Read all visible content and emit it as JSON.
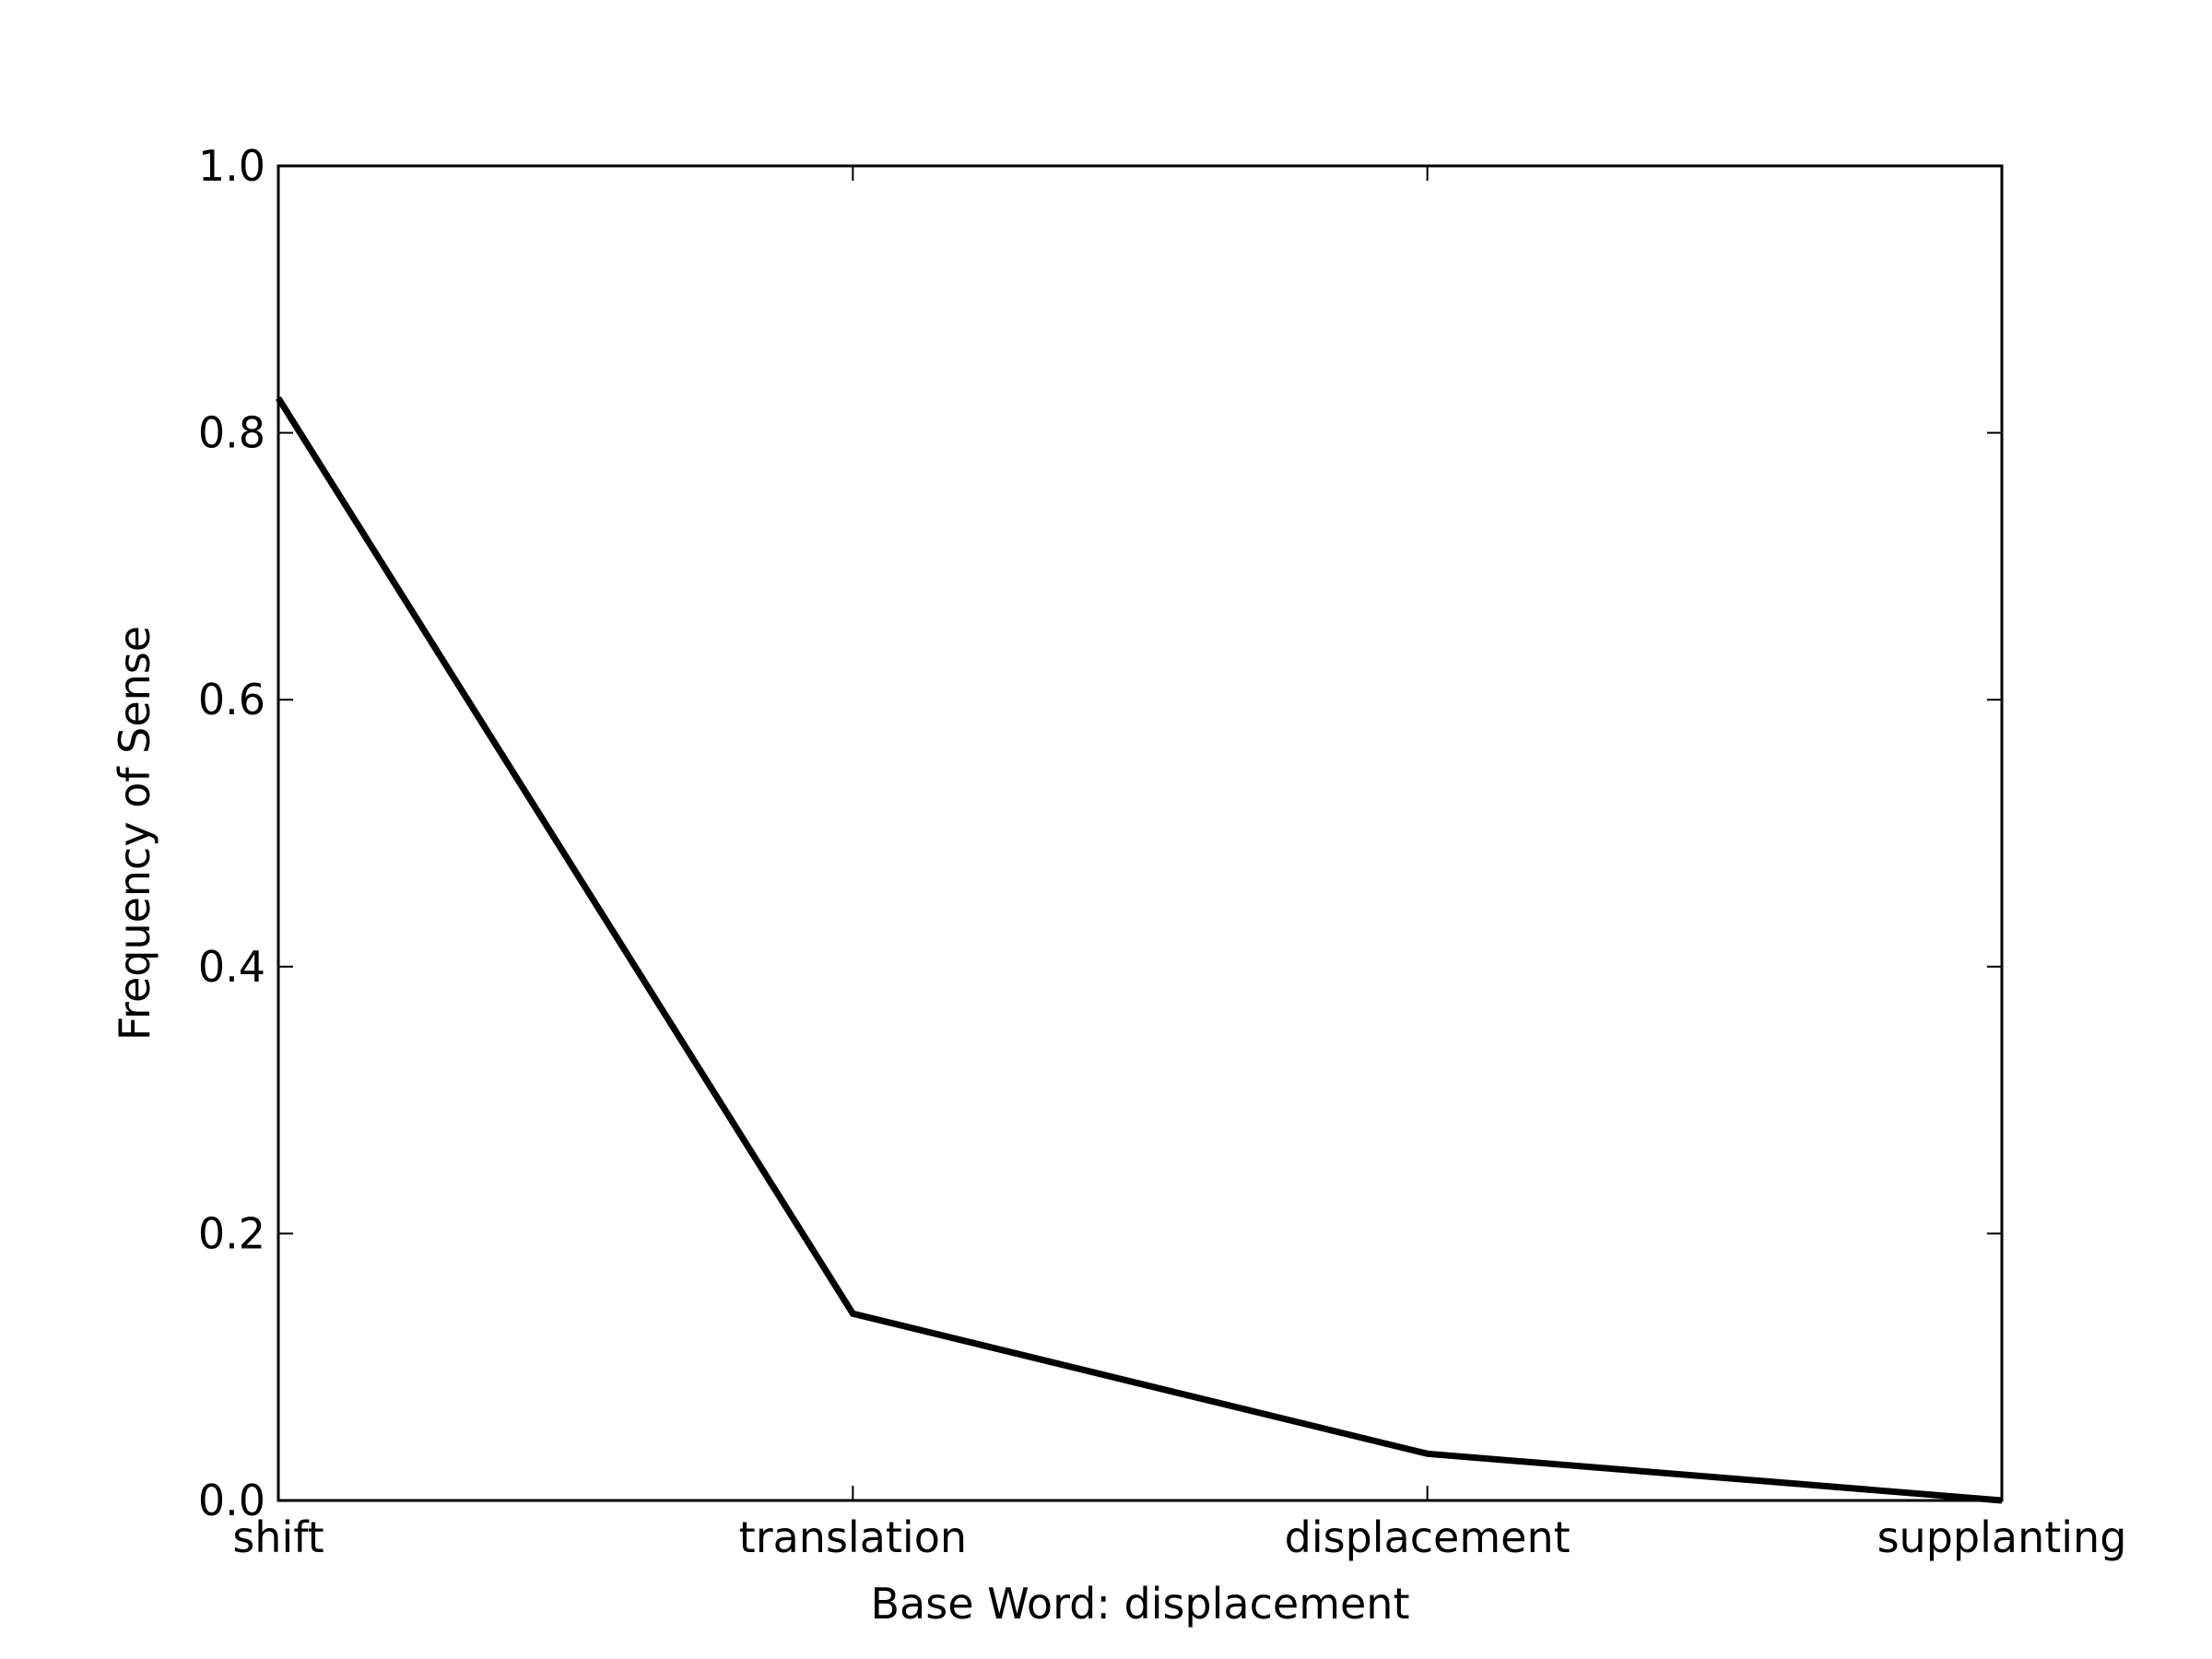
{
  "chart_data": {
    "type": "line",
    "title": "",
    "xlabel": "Base Word: displacement",
    "ylabel": "Frequency of Sense",
    "categories": [
      "shift",
      "translation",
      "displacement",
      "supplanting"
    ],
    "series": [
      {
        "values": [
          0.826,
          0.14,
          0.035,
          0.0
        ],
        "color": "#000000"
      }
    ],
    "ylim": [
      0.0,
      1.0
    ],
    "yticks": [
      "0.0",
      "0.2",
      "0.4",
      "0.6",
      "0.8",
      "1.0"
    ],
    "grid": false,
    "legend": "none"
  }
}
